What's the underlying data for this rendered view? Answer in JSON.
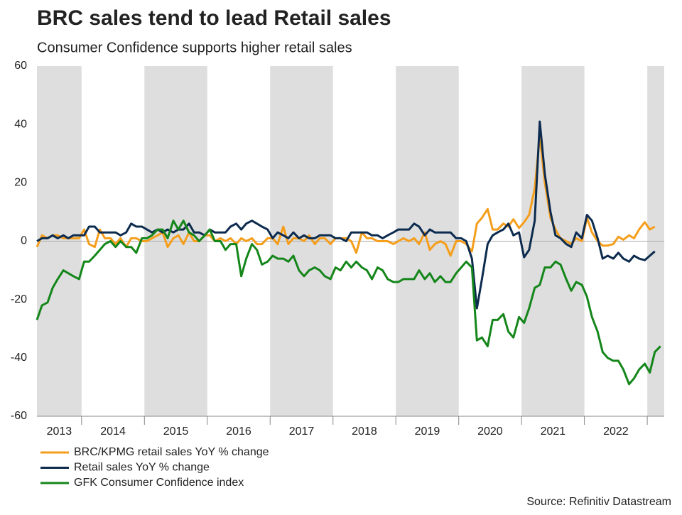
{
  "chart_data": {
    "type": "line",
    "title": "BRC sales tend to lead Retail sales",
    "subtitle": "Consumer Confidence supports higher retail sales",
    "source": "Source: Refinitiv Datastream",
    "x": [
      2013.29,
      2013.37,
      2013.46,
      2013.54,
      2013.62,
      2013.71,
      2013.79,
      2013.87,
      2013.96,
      2014.04,
      2014.12,
      2014.21,
      2014.29,
      2014.37,
      2014.46,
      2014.54,
      2014.62,
      2014.71,
      2014.79,
      2014.87,
      2014.96,
      2015.04,
      2015.12,
      2015.21,
      2015.29,
      2015.37,
      2015.46,
      2015.54,
      2015.62,
      2015.71,
      2015.79,
      2015.87,
      2015.96,
      2016.04,
      2016.12,
      2016.21,
      2016.29,
      2016.37,
      2016.46,
      2016.54,
      2016.62,
      2016.71,
      2016.79,
      2016.87,
      2016.96,
      2017.04,
      2017.12,
      2017.21,
      2017.29,
      2017.37,
      2017.46,
      2017.54,
      2017.62,
      2017.71,
      2017.79,
      2017.87,
      2017.96,
      2018.04,
      2018.12,
      2018.21,
      2018.29,
      2018.37,
      2018.46,
      2018.54,
      2018.62,
      2018.71,
      2018.79,
      2018.87,
      2018.96,
      2019.04,
      2019.12,
      2019.21,
      2019.29,
      2019.37,
      2019.46,
      2019.54,
      2019.62,
      2019.71,
      2019.79,
      2019.87,
      2019.96,
      2020.04,
      2020.12,
      2020.21,
      2020.29,
      2020.37,
      2020.46,
      2020.54,
      2020.62,
      2020.71,
      2020.79,
      2020.87,
      2020.96,
      2021.04,
      2021.12,
      2021.21,
      2021.29,
      2021.37,
      2021.46,
      2021.54,
      2021.62,
      2021.71,
      2021.79,
      2021.87,
      2021.96,
      2022.04,
      2022.12,
      2022.21,
      2022.29,
      2022.37,
      2022.46,
      2022.54,
      2022.62,
      2022.71,
      2022.79,
      2022.87,
      2022.96,
      2023.04,
      2023.12,
      2023.21
    ],
    "series": [
      {
        "name": "BRC/KPMG retail sales YoY % change",
        "color": "#f59e1b",
        "values": [
          -2,
          2,
          1,
          2,
          2,
          1,
          1,
          1,
          1,
          4,
          -1,
          -2,
          4,
          1,
          1,
          -1,
          1,
          -2,
          1,
          1,
          0,
          0,
          1,
          2,
          3,
          -2,
          1,
          2,
          -1,
          3,
          0,
          0,
          2,
          2,
          0,
          1,
          0,
          1,
          -1,
          1,
          0,
          1,
          -1,
          -1,
          1,
          1,
          -1,
          5,
          -1,
          1,
          1,
          0,
          2,
          -1,
          1,
          1,
          -1,
          1,
          1,
          1,
          0,
          -4,
          3,
          1,
          1,
          0,
          0,
          0,
          -1,
          0,
          1,
          0,
          1,
          -1,
          3,
          -3,
          -1,
          0,
          -1,
          -5,
          0,
          0,
          -1,
          -3.5,
          6,
          8,
          11,
          4,
          4,
          6,
          5,
          7.5,
          4.5,
          6.5,
          9,
          18,
          36,
          20,
          8,
          4,
          1,
          0,
          -1,
          1,
          0,
          8,
          3,
          0,
          -1.5,
          -1.5,
          -1,
          1.5,
          0.5,
          2,
          1,
          4,
          6.5,
          4,
          5,
          null
        ]
      },
      {
        "name": "Retail sales YoY % change",
        "color": "#0c2b4e",
        "values": [
          0,
          1,
          1,
          2,
          1,
          2,
          1,
          2,
          2,
          2,
          5,
          5,
          3,
          3,
          3,
          3,
          2,
          3,
          6,
          5,
          5,
          4,
          3,
          4,
          3,
          4,
          3,
          4,
          4,
          6,
          3,
          3,
          2,
          4,
          3,
          3,
          3,
          5,
          6,
          4,
          6,
          7,
          6,
          5,
          4,
          1,
          3,
          2,
          1,
          3,
          1,
          2,
          1,
          1,
          2,
          2,
          2,
          1,
          1,
          0,
          3,
          3,
          3,
          3,
          2,
          2,
          1,
          2,
          3,
          4,
          4,
          4,
          6,
          5,
          2,
          4,
          3,
          3,
          3,
          3,
          1,
          1,
          0,
          -6,
          -23,
          -13,
          -1,
          2,
          3,
          4,
          6,
          2,
          3,
          -5.5,
          -3,
          7,
          41,
          23,
          10,
          2,
          1,
          -1,
          -2,
          3,
          1,
          9,
          7,
          1,
          -6,
          -5,
          -6,
          -4,
          -6,
          -7,
          -5,
          -6,
          -6.5,
          -5,
          -3.5,
          null
        ]
      },
      {
        "name": "GFK Consumer Confidence index",
        "color": "#14861a",
        "values": [
          -27,
          -22,
          -21,
          -16,
          -13,
          -10,
          -11,
          -12,
          -13,
          -7,
          -7,
          -5,
          -3,
          -1,
          0,
          -2,
          0,
          -2,
          -2,
          -4,
          1,
          1,
          2,
          4,
          4,
          1,
          7,
          4,
          7,
          3,
          2,
          0,
          2,
          4,
          0,
          0,
          -3,
          -1,
          -1,
          -12,
          -6,
          -1,
          -3,
          -8,
          -7,
          -5,
          -6,
          -6,
          -7,
          -5,
          -10,
          -12,
          -10,
          -9,
          -10,
          -12,
          -13,
          -9,
          -10,
          -7,
          -9,
          -7,
          -9,
          -10,
          -13,
          -9,
          -10,
          -13,
          -14,
          -14,
          -13,
          -13,
          -13,
          -10,
          -13,
          -11,
          -14,
          -12,
          -14,
          -14,
          -11,
          -9,
          -7,
          -9,
          -34,
          -33,
          -36,
          -27,
          -27,
          -25,
          -31,
          -33,
          -26,
          -28,
          -23,
          -16,
          -15,
          -9,
          -9,
          -7,
          -8,
          -13,
          -17,
          -14,
          -15,
          -19,
          -26,
          -31,
          -38,
          -40,
          -41,
          -41,
          -44,
          -49,
          -47,
          -44,
          -42,
          -45,
          -38,
          -36
        ]
      }
    ],
    "xlim": [
      2013.29,
      2023.27
    ],
    "xticks": [
      {
        "value": 2013.5,
        "label": "2013"
      },
      {
        "value": 2014.5,
        "label": "2014"
      },
      {
        "value": 2015.5,
        "label": "2015"
      },
      {
        "value": 2016.5,
        "label": "2016"
      },
      {
        "value": 2017.5,
        "label": "2017"
      },
      {
        "value": 2018.5,
        "label": "2018"
      },
      {
        "value": 2019.5,
        "label": "2019"
      },
      {
        "value": 2020.5,
        "label": "2020"
      },
      {
        "value": 2021.5,
        "label": "2021"
      },
      {
        "value": 2022.5,
        "label": "2022"
      }
    ],
    "ylim": [
      -60,
      60
    ],
    "yticks": [
      -60,
      -40,
      -20,
      0,
      20,
      40,
      60
    ],
    "band_color": "#dedede"
  }
}
